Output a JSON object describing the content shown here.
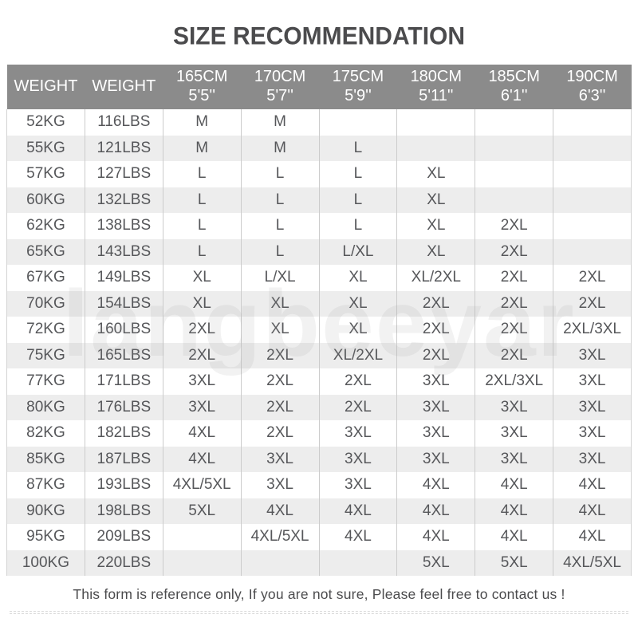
{
  "title": "SIZE RECOMMENDATION",
  "watermark": "langbeeyar",
  "footer": {
    "note": "This form is reference only, If you are not sure, Please feel free to contact us !"
  },
  "colors": {
    "header_bg": "#8b8b8b",
    "header_text": "#ffffff",
    "row_bg": "#ffffff",
    "row_alt_bg": "#ededed",
    "cell_text": "#56575a",
    "title_text": "#4b4b4d",
    "cell_border": "#cccccc"
  },
  "table": {
    "columns": [
      {
        "label": "WEIGHT",
        "sublabel": ""
      },
      {
        "label": "WEIGHT",
        "sublabel": ""
      },
      {
        "label": "165CM",
        "sublabel": "5'5''"
      },
      {
        "label": "170CM",
        "sublabel": "5'7''"
      },
      {
        "label": "175CM",
        "sublabel": "5'9''"
      },
      {
        "label": "180CM",
        "sublabel": "5'11''"
      },
      {
        "label": "185CM",
        "sublabel": "6'1''"
      },
      {
        "label": "190CM",
        "sublabel": "6'3''"
      }
    ],
    "rows": [
      {
        "kg": "52KG",
        "lbs": "116LBS",
        "sizes": [
          "M",
          "M",
          "",
          "",
          "",
          ""
        ]
      },
      {
        "kg": "55KG",
        "lbs": "121LBS",
        "sizes": [
          "M",
          "M",
          "L",
          "",
          "",
          ""
        ]
      },
      {
        "kg": "57KG",
        "lbs": "127LBS",
        "sizes": [
          "L",
          "L",
          "L",
          "XL",
          "",
          ""
        ]
      },
      {
        "kg": "60KG",
        "lbs": "132LBS",
        "sizes": [
          "L",
          "L",
          "L",
          "XL",
          "",
          ""
        ]
      },
      {
        "kg": "62KG",
        "lbs": "138LBS",
        "sizes": [
          "L",
          "L",
          "L",
          "XL",
          "2XL",
          ""
        ]
      },
      {
        "kg": "65KG",
        "lbs": "143LBS",
        "sizes": [
          "L",
          "L",
          "L/XL",
          "XL",
          "2XL",
          ""
        ]
      },
      {
        "kg": "67KG",
        "lbs": "149LBS",
        "sizes": [
          "XL",
          "L/XL",
          "XL",
          "XL/2XL",
          "2XL",
          "2XL"
        ]
      },
      {
        "kg": "70KG",
        "lbs": "154LBS",
        "sizes": [
          "XL",
          "XL",
          "XL",
          "2XL",
          "2XL",
          "2XL"
        ]
      },
      {
        "kg": "72KG",
        "lbs": "160LBS",
        "sizes": [
          "2XL",
          "XL",
          "XL",
          "2XL",
          "2XL",
          "2XL/3XL"
        ]
      },
      {
        "kg": "75KG",
        "lbs": "165LBS",
        "sizes": [
          "2XL",
          "2XL",
          "XL/2XL",
          "2XL",
          "2XL",
          "3XL"
        ]
      },
      {
        "kg": "77KG",
        "lbs": "171LBS",
        "sizes": [
          "3XL",
          "2XL",
          "2XL",
          "3XL",
          "2XL/3XL",
          "3XL"
        ]
      },
      {
        "kg": "80KG",
        "lbs": "176LBS",
        "sizes": [
          "3XL",
          "2XL",
          "2XL",
          "3XL",
          "3XL",
          "3XL"
        ]
      },
      {
        "kg": "82KG",
        "lbs": "182LBS",
        "sizes": [
          "4XL",
          "2XL",
          "3XL",
          "3XL",
          "3XL",
          "3XL"
        ]
      },
      {
        "kg": "85KG",
        "lbs": "187LBS",
        "sizes": [
          "4XL",
          "3XL",
          "3XL",
          "3XL",
          "3XL",
          "3XL"
        ]
      },
      {
        "kg": "87KG",
        "lbs": "193LBS",
        "sizes": [
          "4XL/5XL",
          "3XL",
          "3XL",
          "4XL",
          "4XL",
          "4XL"
        ]
      },
      {
        "kg": "90KG",
        "lbs": "198LBS",
        "sizes": [
          "5XL",
          "4XL",
          "4XL",
          "4XL",
          "4XL",
          "4XL"
        ]
      },
      {
        "kg": "95KG",
        "lbs": "209LBS",
        "sizes": [
          "",
          "4XL/5XL",
          "4XL",
          "4XL",
          "4XL",
          "4XL"
        ]
      },
      {
        "kg": "100KG",
        "lbs": "220LBS",
        "sizes": [
          "",
          "",
          "",
          "5XL",
          "5XL",
          "4XL/5XL"
        ]
      }
    ]
  }
}
